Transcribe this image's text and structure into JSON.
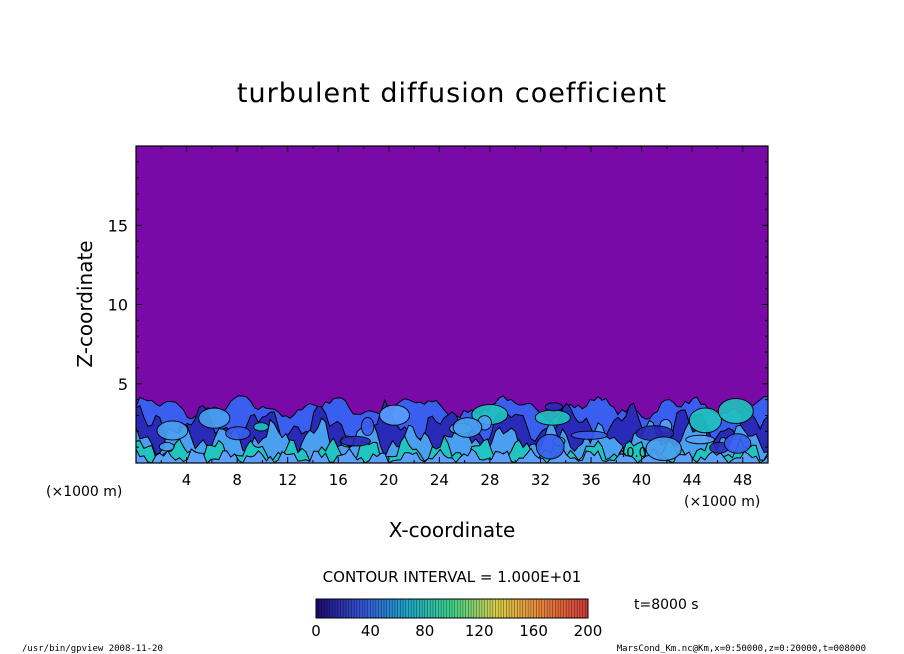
{
  "chart_data": {
    "type": "heatmap",
    "title": "turbulent diffusion coefficient",
    "xlabel": "X-coordinate",
    "ylabel": "Z-coordinate",
    "x_unit": "(×1000 m)",
    "z_unit": "(×1000 m)",
    "xlim": [
      0,
      50
    ],
    "ylim": [
      0,
      20
    ],
    "x_ticks": [
      4,
      8,
      12,
      16,
      20,
      24,
      28,
      32,
      36,
      40,
      44,
      48
    ],
    "y_ticks": [
      5,
      10,
      15
    ],
    "contour_interval": "CONTOUR INTERVAL = 1.000E+01",
    "contour_label": "40.0",
    "time_label": "t=8000 s",
    "colorbar": {
      "min": 0,
      "max": 200,
      "ticks": [
        0,
        40,
        80,
        120,
        160,
        200
      ],
      "colors": [
        "#1a0a6e",
        "#3552d6",
        "#1fa6c9",
        "#3fd28a",
        "#d9d04a",
        "#e8823c",
        "#d23a3a"
      ]
    },
    "background_color": "#7a0aa8",
    "turbulent_layer_top_km": 4.0,
    "layer_colors": [
      "#3a5ff0",
      "#2a2ab8",
      "#4aa0f0",
      "#20c4c0",
      "#5aa0ff"
    ]
  },
  "footer": {
    "left": "/usr/bin/gpview   2008-11-20",
    "right": "MarsCond_Km.nc@Km,x=0:50000,z=0:20000,t=008000"
  }
}
